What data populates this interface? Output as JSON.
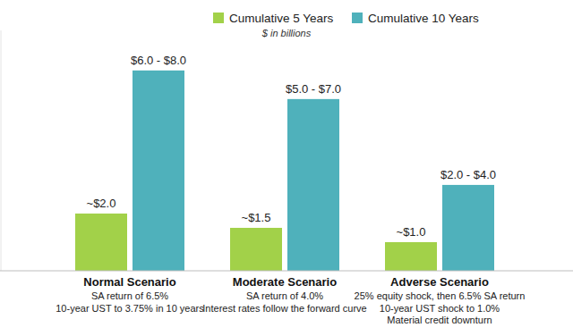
{
  "chart_data": {
    "type": "bar",
    "subtitle": "$ in billions",
    "categories": [
      "Normal Scenario",
      "Moderate Scenario",
      "Adverse Scenario"
    ],
    "annotations": [
      [
        "SA return of 6.5%",
        "10-year UST to 3.75% in 10 years"
      ],
      [
        "SA return of 4.0%",
        "Interest rates follow the forward curve"
      ],
      [
        "25% equity shock, then 6.5% SA return",
        "10-year UST shock to 1.0%",
        "Material credit downturn"
      ]
    ],
    "series": [
      {
        "name": "Cumulative 5 Years",
        "color": "#a2d149",
        "values": [
          2.0,
          1.5,
          1.0
        ],
        "value_labels": [
          "~$2.0",
          "~$1.5",
          "~$1.0"
        ]
      },
      {
        "name": "Cumulative 10 Years",
        "color": "#4fb1bb",
        "values": [
          7.0,
          6.0,
          3.0
        ],
        "value_labels": [
          "$6.0 - $8.0",
          "$5.0 - $7.0",
          "$2.0 - $4.0"
        ]
      }
    ],
    "ylim": [
      0,
      8.4
    ],
    "yticks": [
      0
    ],
    "tick_labels": false,
    "grid": false,
    "legend": "top",
    "data_labels": true
  }
}
